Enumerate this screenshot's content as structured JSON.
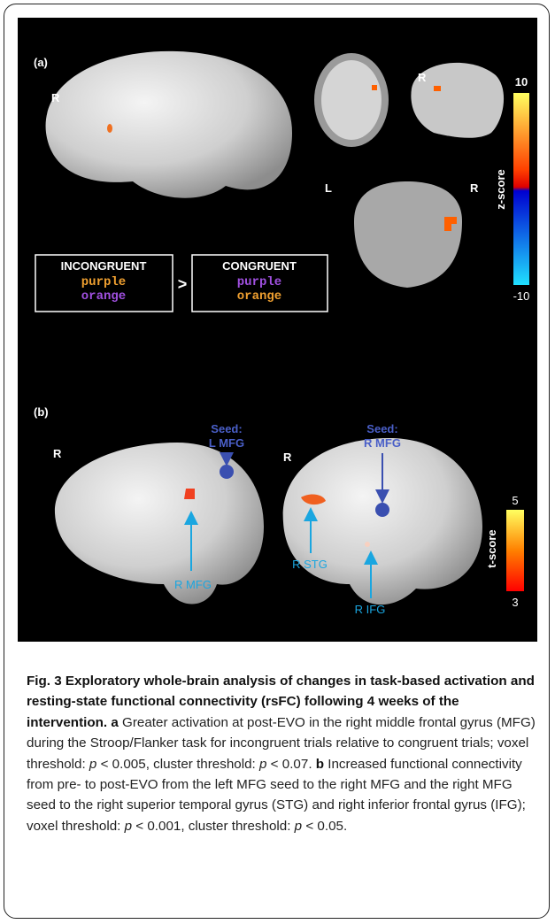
{
  "figure": {
    "panel_a": {
      "label": "(a)",
      "brain_side": "R",
      "sagittal_side": "R",
      "coronal_left": "L",
      "coronal_right": "R",
      "colorbar": {
        "max": "10",
        "title": "z-score",
        "min": "-10"
      },
      "incongruent": {
        "title": "INCONGRUENT",
        "word1": "purple",
        "word2": "orange"
      },
      "comparison": ">",
      "congruent": {
        "title": "CONGRUENT",
        "word1": "purple",
        "word2": "orange"
      }
    },
    "panel_b": {
      "label": "(b)",
      "left_side": "R",
      "left_seed": [
        "Seed:",
        "L MFG"
      ],
      "left_result": "R MFG",
      "right_side": "R",
      "right_seed": [
        "Seed:",
        "R MFG"
      ],
      "right_result_1": "R STG",
      "right_result_2": "R IFG",
      "colorbar": {
        "max": "5",
        "title": "t-score",
        "min": "3"
      }
    }
  },
  "caption": {
    "title": "Fig. 3 Exploratory whole-brain analysis of changes in task-based activation and resting-state functional connectivity (rsFC) following 4 weeks of the intervention.",
    "a_label": "a",
    "a_text": [
      " Greater activation at post-EVO in the right middle frontal gyrus (MFG) during the Stroop/Flanker task for incongruent trials relative to congruent trials; voxel threshold: ",
      "p",
      " < 0.005, cluster threshold: ",
      "p",
      " < 0.07. "
    ],
    "b_label": "b",
    "b_text": [
      " Increased functional connectivity from pre- to post-EVO from the left MFG seed to the right MFG and the right MFG seed to the right superior temporal gyrus (STG) and right inferior frontal gyrus (IFG); voxel threshold: ",
      "p",
      " < 0.001, cluster threshold: ",
      "p",
      " < 0.05."
    ]
  }
}
